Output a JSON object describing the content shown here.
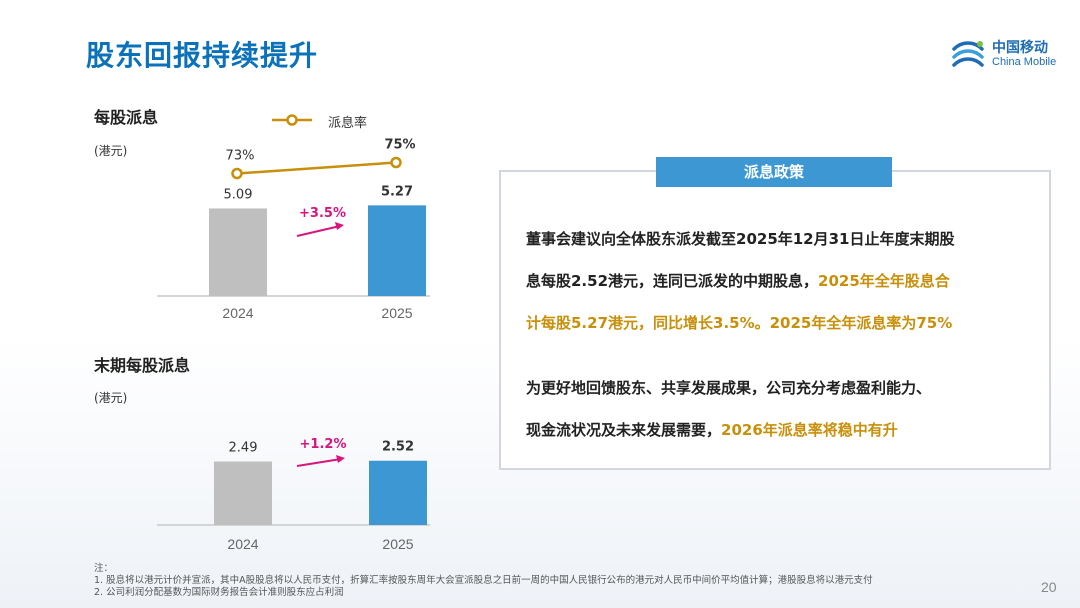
{
  "title": "股东回报持续提升",
  "logo": {
    "cn": "中国移动",
    "en": "China Mobile"
  },
  "legend": {
    "label": "派息率"
  },
  "charts": {
    "dps": {
      "title": "每股派息",
      "unit": "(港元)",
      "growth": "+3.5%"
    },
    "final": {
      "title": "末期每股派息",
      "unit": "(港元)",
      "growth": "+1.2%"
    }
  },
  "chart_data": [
    {
      "type": "bar",
      "title": "每股派息",
      "unit": "(港元)",
      "categories": [
        "2024",
        "2025"
      ],
      "values": [
        5.09,
        5.27
      ],
      "value_labels": [
        "5.09",
        "5.27"
      ],
      "growth_annotation": "+3.5%",
      "colors": [
        "#bfbfbf",
        "#3d97d3"
      ],
      "line_series": {
        "name": "派息率",
        "values": [
          73,
          75
        ],
        "labels": [
          "73%",
          "75%"
        ],
        "color": "#c8900a"
      }
    },
    {
      "type": "bar",
      "title": "末期每股派息",
      "unit": "(港元)",
      "categories": [
        "2024",
        "2025"
      ],
      "values": [
        2.49,
        2.52
      ],
      "value_labels": [
        "2.49",
        "2.52"
      ],
      "growth_annotation": "+1.2%",
      "colors": [
        "#bfbfbf",
        "#3d97d3"
      ]
    }
  ],
  "policy": {
    "tag": "派息政策",
    "para1": [
      [
        {
          "t": "董事会建议向全体股东派发截至2025年12月31日止年度末期股",
          "h": false
        }
      ],
      [
        {
          "t": "息每股2.52港元，连同已派发的中期股息，",
          "h": false
        },
        {
          "t": "2025年全年股息合",
          "h": true
        }
      ],
      [
        {
          "t": "计每股5.27港元，同比增长3.5%。2025年全年派息率为75%",
          "h": true
        }
      ]
    ],
    "para2": [
      [
        {
          "t": "为更好地回馈股东、共享发展成果，公司充分考虑盈利能力、",
          "h": false
        }
      ],
      [
        {
          "t": "现金流状况及未来发展需要，",
          "h": false
        },
        {
          "t": "2026年派息率将稳中有升",
          "h": true
        }
      ]
    ]
  },
  "notes": [
    "注：",
    "1. 股息将以港元计价并宣派，其中A股股息将以人民币支付，折算汇率按股东周年大会宣派股息之日前一周的中国人民银行公布的港元对人民币中间价平均值计算；港股股息将以港元支付",
    "2. 公司利润分配基数为国际财务报告会计准则股东应占利润"
  ],
  "page_number": "20"
}
